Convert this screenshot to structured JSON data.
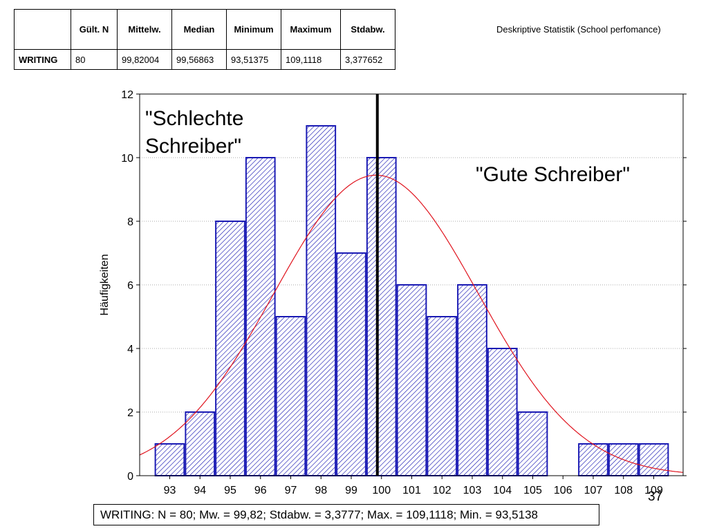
{
  "stats_table": {
    "headers": [
      "",
      "Gült. N",
      "Mittelw.",
      "Median",
      "Minimum",
      "Maximum",
      "Stdabw."
    ],
    "row": [
      "WRITING",
      "80",
      "99,82004",
      "99,56863",
      "93,51375",
      "109,1118",
      "3,377652"
    ]
  },
  "caption": "Deskriptive Statistik (School perfomance)",
  "chart_data": {
    "type": "bar",
    "categories": [
      "93",
      "94",
      "95",
      "96",
      "97",
      "98",
      "99",
      "100",
      "101",
      "102",
      "103",
      "104",
      "105",
      "106",
      "107",
      "108",
      "109"
    ],
    "values": [
      1,
      2,
      8,
      10,
      5,
      11,
      7,
      10,
      6,
      5,
      6,
      4,
      2,
      0,
      1,
      1,
      1
    ],
    "ylabel": "Häufigkeiten",
    "ylim": [
      0,
      12
    ],
    "yticks": [
      "0",
      "2",
      "4",
      "6",
      "8",
      "10",
      "12"
    ],
    "grid": true,
    "bar_color": "#1a1ab4",
    "curve_color": "#e0141e",
    "normal_curve": {
      "mean": 99.82,
      "std": 3.3777,
      "n": 80,
      "bin_width": 1
    },
    "vertical_line_x": 100,
    "annotations": [
      "\"Schlechte",
      "Schreiber\"",
      "\"Gute Schreiber\""
    ]
  },
  "summary": "WRITING:   N = 80; Mw. = 99,82; Stdabw. = 3,3777; Max. = 109,1118; Min. = 93,5138",
  "page_number": "37"
}
